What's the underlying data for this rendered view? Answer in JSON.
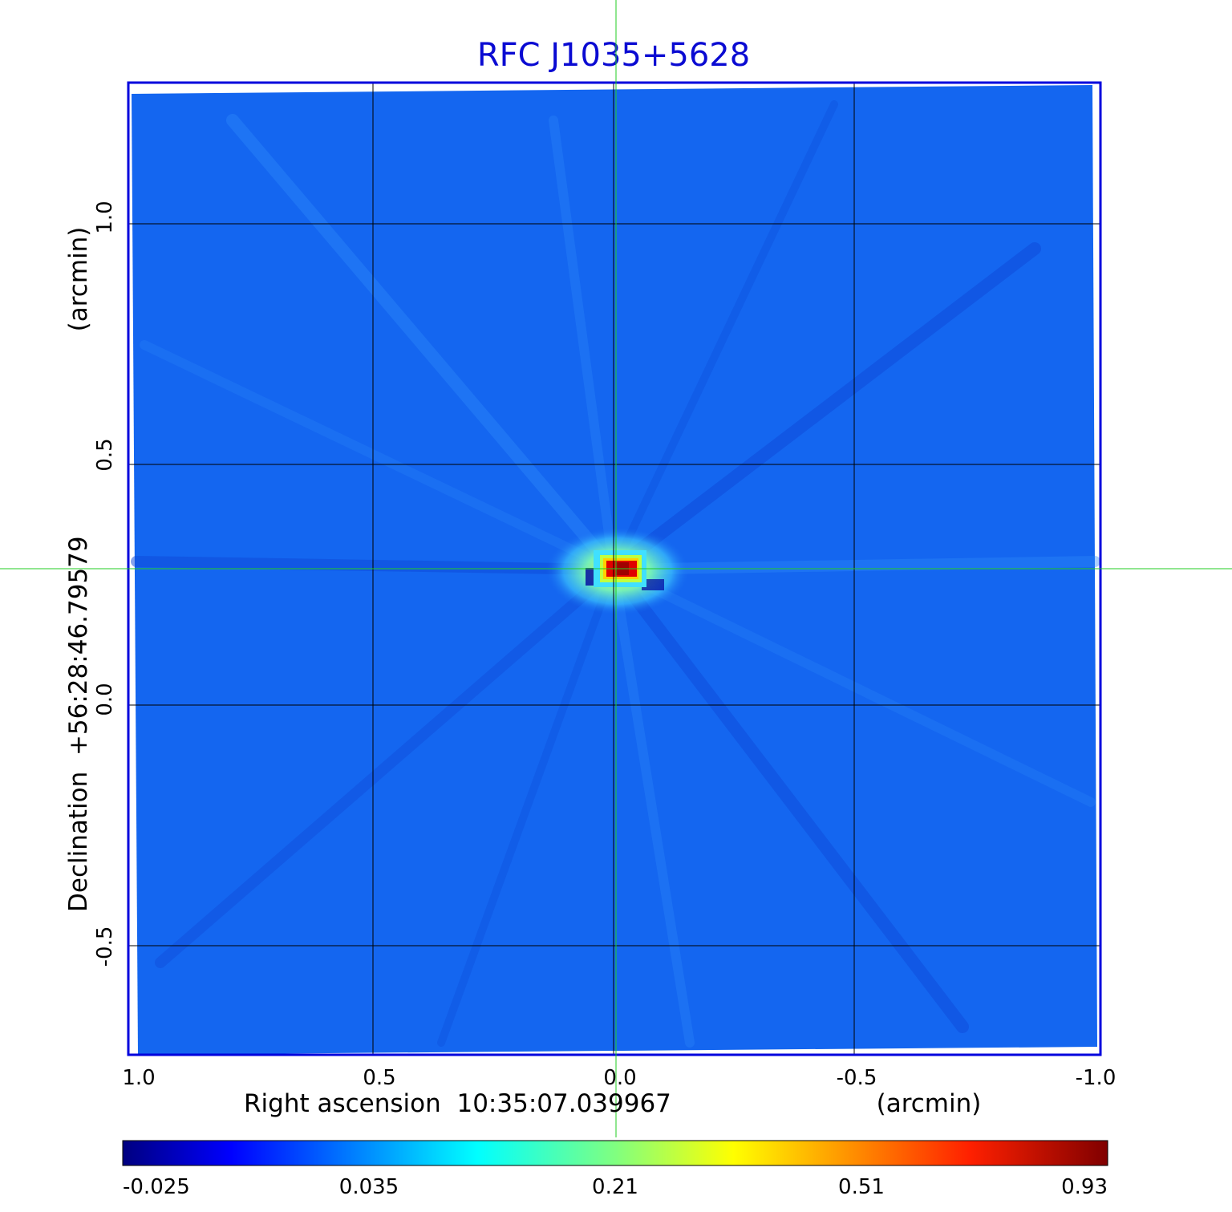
{
  "chart_data": {
    "type": "heatmap",
    "title": "RFC J1035+5628",
    "xlabel": "Right ascension  10:35:07.039967",
    "xlabel_unit": "(arcmin)",
    "ylabel": "Declination  +56:28:46.79579",
    "ylabel_unit": "(arcmin)",
    "x_ticks": [
      "1.0",
      "0.5",
      "0.0",
      "-0.5",
      "-1.0"
    ],
    "y_ticks": [
      "-0.5",
      "0.0",
      "0.5",
      "1.0"
    ],
    "x_tick_values": [
      1.0,
      0.5,
      0.0,
      -0.5,
      -1.0
    ],
    "y_tick_values": [
      -0.5,
      0.0,
      0.5,
      1.0
    ],
    "xlim": [
      1.0,
      -1.0
    ],
    "ylim": [
      -0.73,
      1.29
    ],
    "grid": true,
    "crosshair": {
      "x": 0.0,
      "y": 0.285,
      "color": "#22cc22"
    },
    "peak": {
      "x": -0.015,
      "y": 0.285
    },
    "colorbar": {
      "ticks": [
        "-0.025",
        "0.035",
        "0.21",
        "0.51",
        "0.93"
      ],
      "colormap": "jet",
      "placement": "bottom"
    },
    "colors": {
      "title": "#0a0ad2",
      "frame": "#0000dd",
      "background_field": "#1466f0",
      "grid": "#000000"
    }
  }
}
